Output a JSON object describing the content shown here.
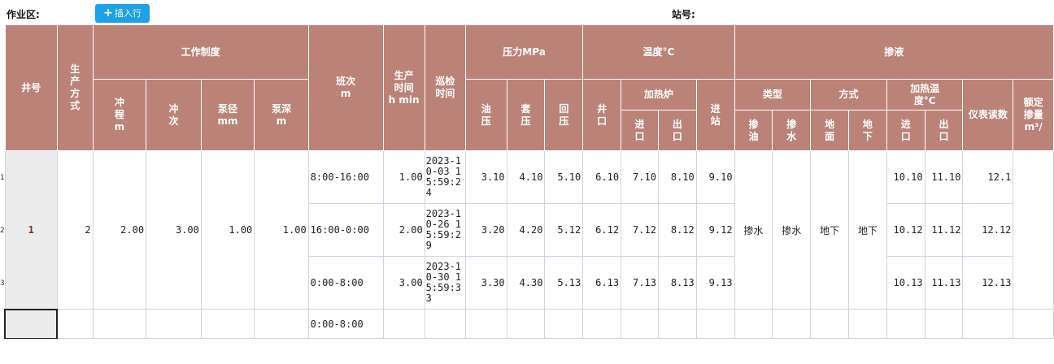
{
  "toolbar": {
    "area_label": "作业区:",
    "insert_button": "插入行",
    "station_label": "站号:"
  },
  "headers": {
    "well_no": "井号",
    "prod_mode": "生产方式",
    "work_system": "工作制度",
    "stroke": "冲程",
    "stroke_unit": "m",
    "strokes": "冲次",
    "pump_dia": "泵径",
    "pump_dia_unit": "mm",
    "pump_depth": "泵深",
    "pump_depth_unit": "m",
    "shift": "班次",
    "shift_unit": "m",
    "prod_time": "生产时间",
    "prod_time_unit": "h min",
    "patrol_time": "巡检时间",
    "pressure": "压力MPa",
    "oil_p": "油压",
    "casing_p": "套压",
    "back_p": "回压",
    "temperature": "温度°C",
    "wellhead": "井口",
    "furnace": "加热炉",
    "inlet": "进口",
    "outlet": "出口",
    "to_station": "进站",
    "blending": "掺液",
    "type": "类型",
    "mix_oil": "掺油",
    "mix_water": "掺水",
    "method": "方式",
    "ground": "地面",
    "underground": "地下",
    "heat_temp": "加热温度°C",
    "heat_inlet": "进口",
    "heat_outlet": "出口",
    "meter_reading": "仪表读数",
    "rated": "额定掺量m³/"
  },
  "row_numbers": [
    "1",
    "2",
    "3"
  ],
  "well": {
    "well_no": "1",
    "prod_mode": "2",
    "stroke": "2.00",
    "strokes": "3.00",
    "pump_dia": "1.00",
    "pump_depth": "1.00",
    "type_oil": "掺水",
    "type_water": "掺水",
    "method_ground": "地下",
    "method_under": "地下"
  },
  "rows": [
    {
      "shift": "8:00-16:00",
      "prod_time": "1.00",
      "patrol": "2023-10-03 15:59:24",
      "oil_p": "3.10",
      "casing_p": "4.10",
      "back_p": "5.10",
      "wellhead": "6.10",
      "f_in": "7.10",
      "f_out": "8.10",
      "to_station": "9.10",
      "h_in": "10.10",
      "h_out": "11.10",
      "meter": "12.1"
    },
    {
      "shift": "16:00-0:00",
      "prod_time": "2.00",
      "patrol": "2023-10-26 15:59:29",
      "oil_p": "3.20",
      "casing_p": "4.20",
      "back_p": "5.12",
      "wellhead": "6.12",
      "f_in": "7.12",
      "f_out": "8.12",
      "to_station": "9.12",
      "h_in": "10.12",
      "h_out": "11.12",
      "meter": "12.12"
    },
    {
      "shift": "0:00-8:00",
      "prod_time": "3.00",
      "patrol": "2023-10-30 15:59:33",
      "oil_p": "3.30",
      "casing_p": "4.30",
      "back_p": "5.13",
      "wellhead": "6.13",
      "f_in": "7.13",
      "f_out": "8.13",
      "to_station": "9.13",
      "h_in": "10.13",
      "h_out": "11.13",
      "meter": "12.13"
    }
  ],
  "new_row": {
    "shift": "0:00-8:00"
  }
}
